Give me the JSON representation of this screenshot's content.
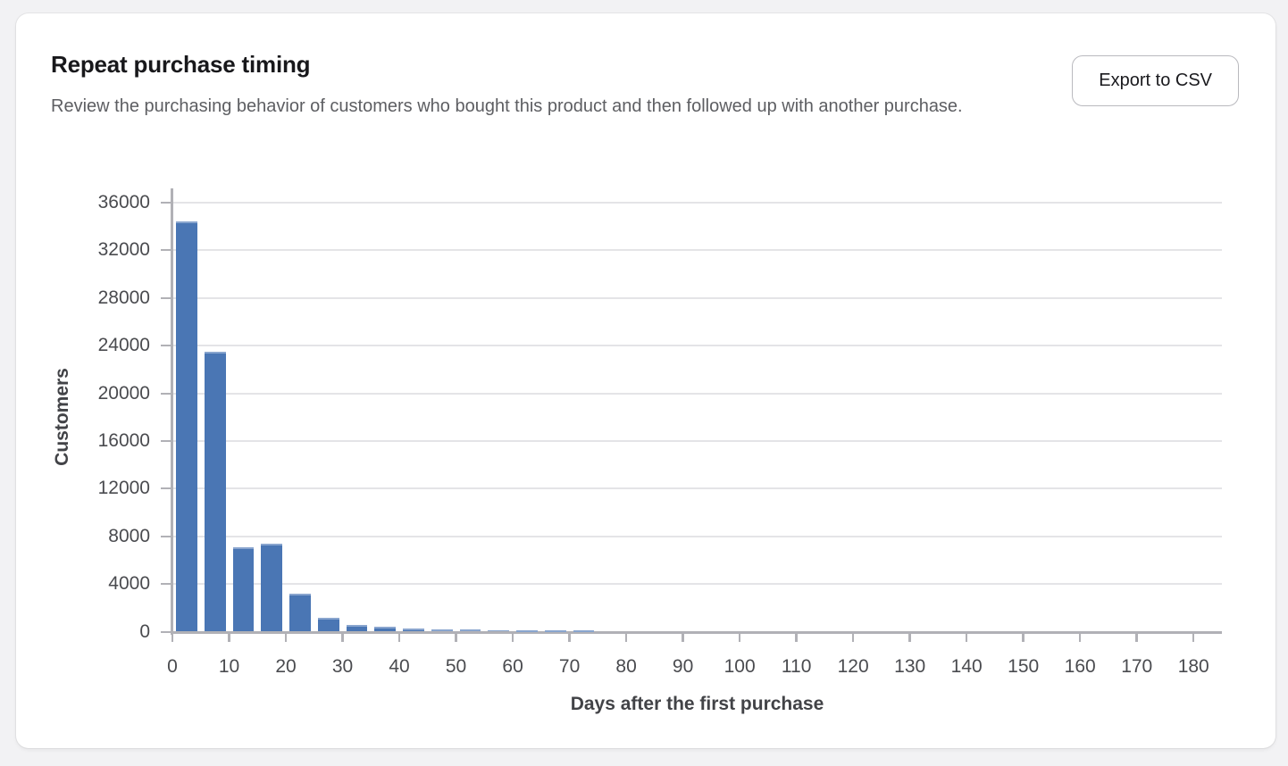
{
  "card": {
    "title": "Repeat purchase timing",
    "subtitle": "Review the purchasing behavior of customers who bought this product and then followed up with another purchase.",
    "export_button_label": "Export to CSV"
  },
  "chart_data": {
    "type": "bar",
    "title": "Repeat purchase timing",
    "xlabel": "Days after the first purchase",
    "ylabel": "Customers",
    "bar_color": "#4a76b4",
    "grid": "horizontal",
    "legend": "none",
    "bin_width_days": 5,
    "xlim": [
      0,
      185
    ],
    "ylim": [
      0,
      36000
    ],
    "x_ticks": [
      0,
      10,
      20,
      30,
      40,
      50,
      60,
      70,
      80,
      90,
      100,
      110,
      120,
      130,
      140,
      150,
      160,
      170,
      180
    ],
    "y_ticks": [
      0,
      4000,
      8000,
      12000,
      16000,
      20000,
      24000,
      28000,
      32000,
      36000
    ],
    "bin_start_days": [
      0,
      5,
      10,
      15,
      20,
      25,
      30,
      35,
      40,
      45,
      50,
      55,
      60,
      65,
      70,
      75,
      80,
      85,
      90,
      95,
      100,
      105,
      110,
      115,
      120,
      125,
      130,
      135,
      140,
      145,
      150,
      155,
      160,
      165,
      170,
      175
    ],
    "values": [
      34400,
      23500,
      7100,
      7400,
      3200,
      1150,
      570,
      400,
      250,
      200,
      160,
      130,
      90,
      70,
      50,
      0,
      0,
      0,
      0,
      0,
      0,
      0,
      0,
      0,
      0,
      0,
      0,
      0,
      0,
      0,
      0,
      0,
      0,
      0,
      0,
      0
    ]
  }
}
